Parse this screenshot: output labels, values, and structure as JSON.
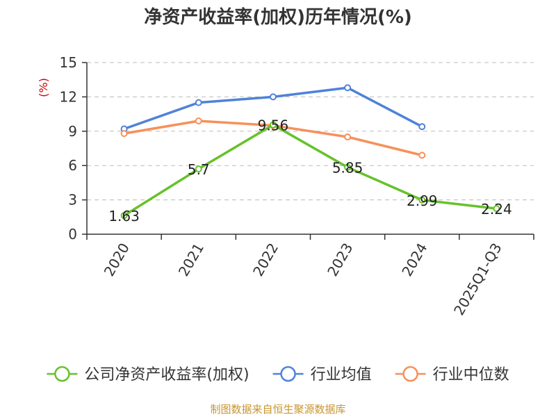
{
  "chart_data": {
    "type": "line",
    "title": "净资产收益率(加权)历年情况(%)",
    "ylabel": "(%)",
    "xlabel": "",
    "categories": [
      "2020",
      "2021",
      "2022",
      "2023",
      "2024",
      "2025Q1-Q3"
    ],
    "ylim": [
      0,
      15
    ],
    "yticks": [
      0,
      3,
      6,
      9,
      12,
      15
    ],
    "grid": true,
    "legend_position": "bottom",
    "series": [
      {
        "name": "公司净资产收益率(加权)",
        "color": "#66c22a",
        "values": [
          1.63,
          5.7,
          9.56,
          5.85,
          2.99,
          2.24
        ],
        "labels": [
          "1.63",
          "5.7",
          "9.56",
          "5.85",
          "2.99",
          "2.24"
        ]
      },
      {
        "name": "行业均值",
        "color": "#4f82d8",
        "values": [
          9.2,
          11.5,
          12.0,
          12.8,
          9.4,
          null
        ]
      },
      {
        "name": "行业中位数",
        "color": "#f7905a",
        "values": [
          8.8,
          9.9,
          9.5,
          8.5,
          6.9,
          null
        ]
      }
    ]
  },
  "footer": {
    "source": "制图数据来自恒生聚源数据库"
  }
}
